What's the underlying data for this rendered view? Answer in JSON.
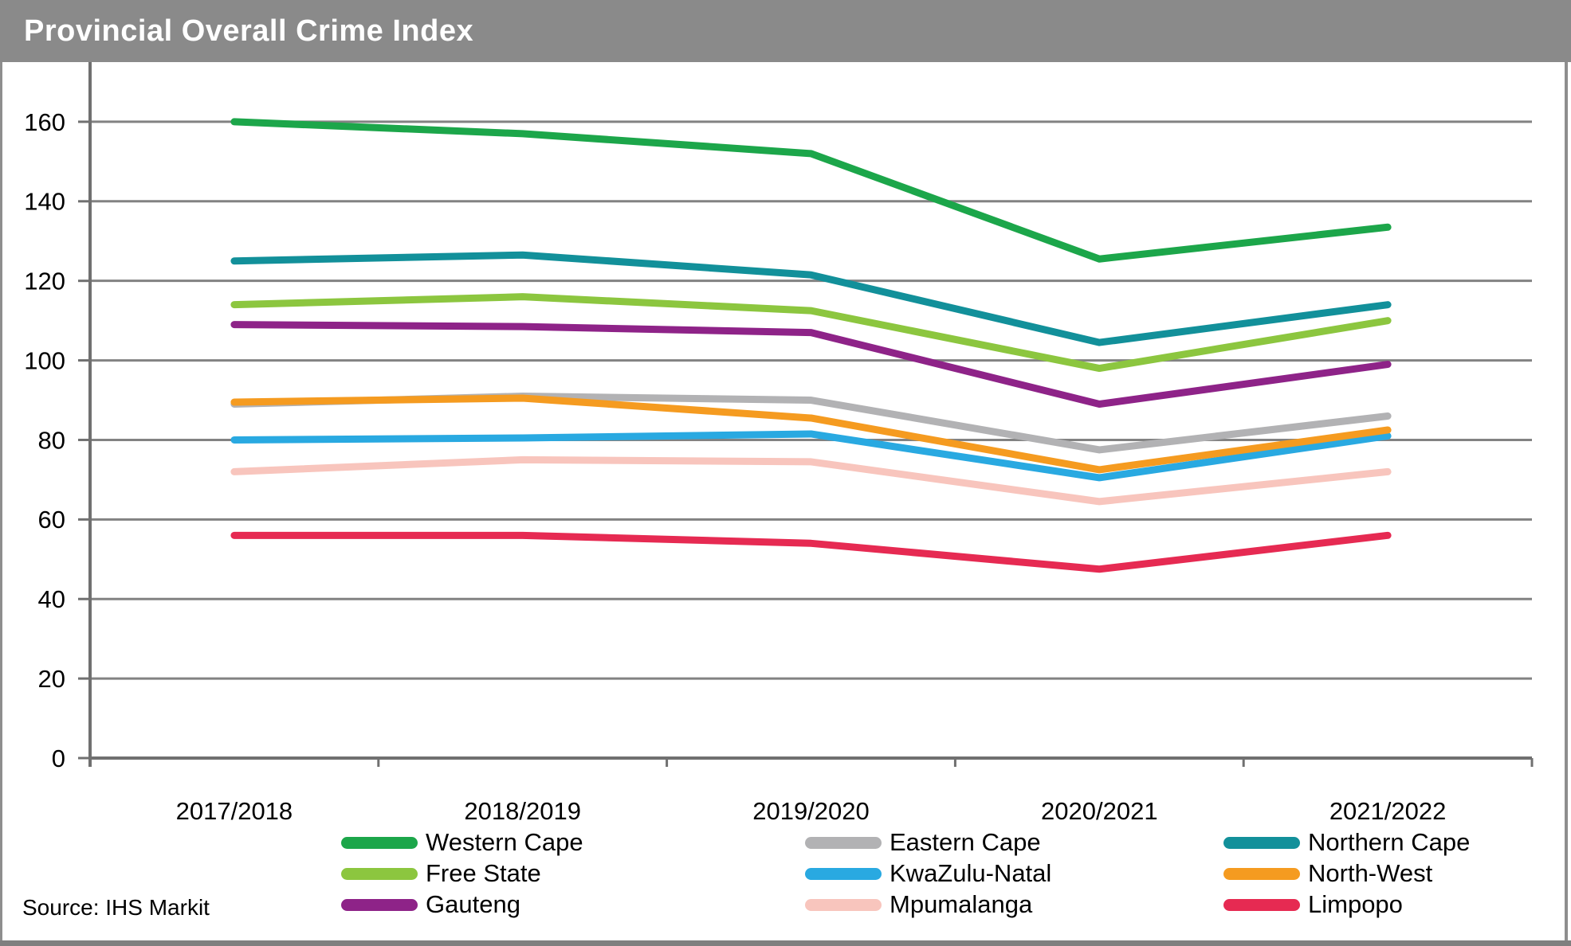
{
  "header": {
    "title": "Provincial Overall Crime Index"
  },
  "source_note": "Source: IHS Markit",
  "chart_data": {
    "type": "line",
    "title": "Provincial Overall Crime Index",
    "categories": [
      "2017/2018",
      "2018/2019",
      "2019/2020",
      "2020/2021",
      "2021/2022"
    ],
    "series": [
      {
        "name": "Western Cape",
        "color": "#1CA64A",
        "values": [
          160,
          157,
          152,
          125.5,
          133.5
        ]
      },
      {
        "name": "Eastern Cape",
        "color": "#B2B2B4",
        "values": [
          89,
          91,
          90,
          77.5,
          86
        ]
      },
      {
        "name": "Northern Cape",
        "color": "#12909A",
        "values": [
          125,
          126.5,
          121.5,
          104.5,
          114
        ]
      },
      {
        "name": "Free State",
        "color": "#8CC63F",
        "values": [
          114,
          116,
          112.5,
          98,
          110
        ]
      },
      {
        "name": "KwaZulu-Natal",
        "color": "#29A9E1",
        "values": [
          80,
          80.5,
          81.5,
          70.5,
          81
        ]
      },
      {
        "name": "North-West",
        "color": "#F59B20",
        "values": [
          89.5,
          90.5,
          85.5,
          72.5,
          82.5
        ]
      },
      {
        "name": "Gauteng",
        "color": "#8E2388",
        "values": [
          109,
          108.5,
          107,
          89,
          99
        ]
      },
      {
        "name": "Mpumalanga",
        "color": "#F8C5BD",
        "values": [
          72,
          75,
          74.5,
          64.5,
          72
        ]
      },
      {
        "name": "Limpopo",
        "color": "#E62A52",
        "values": [
          56,
          56,
          54,
          47.5,
          56
        ]
      }
    ],
    "xlabel": "",
    "ylabel": "",
    "ylim": [
      0,
      175
    ],
    "yticks": [
      0,
      20,
      40,
      60,
      80,
      100,
      120,
      140,
      160
    ],
    "grid": "horizontal",
    "legend_position": "bottom",
    "draw_order": [
      0,
      3,
      6,
      1,
      4,
      7,
      2,
      5,
      8
    ]
  }
}
